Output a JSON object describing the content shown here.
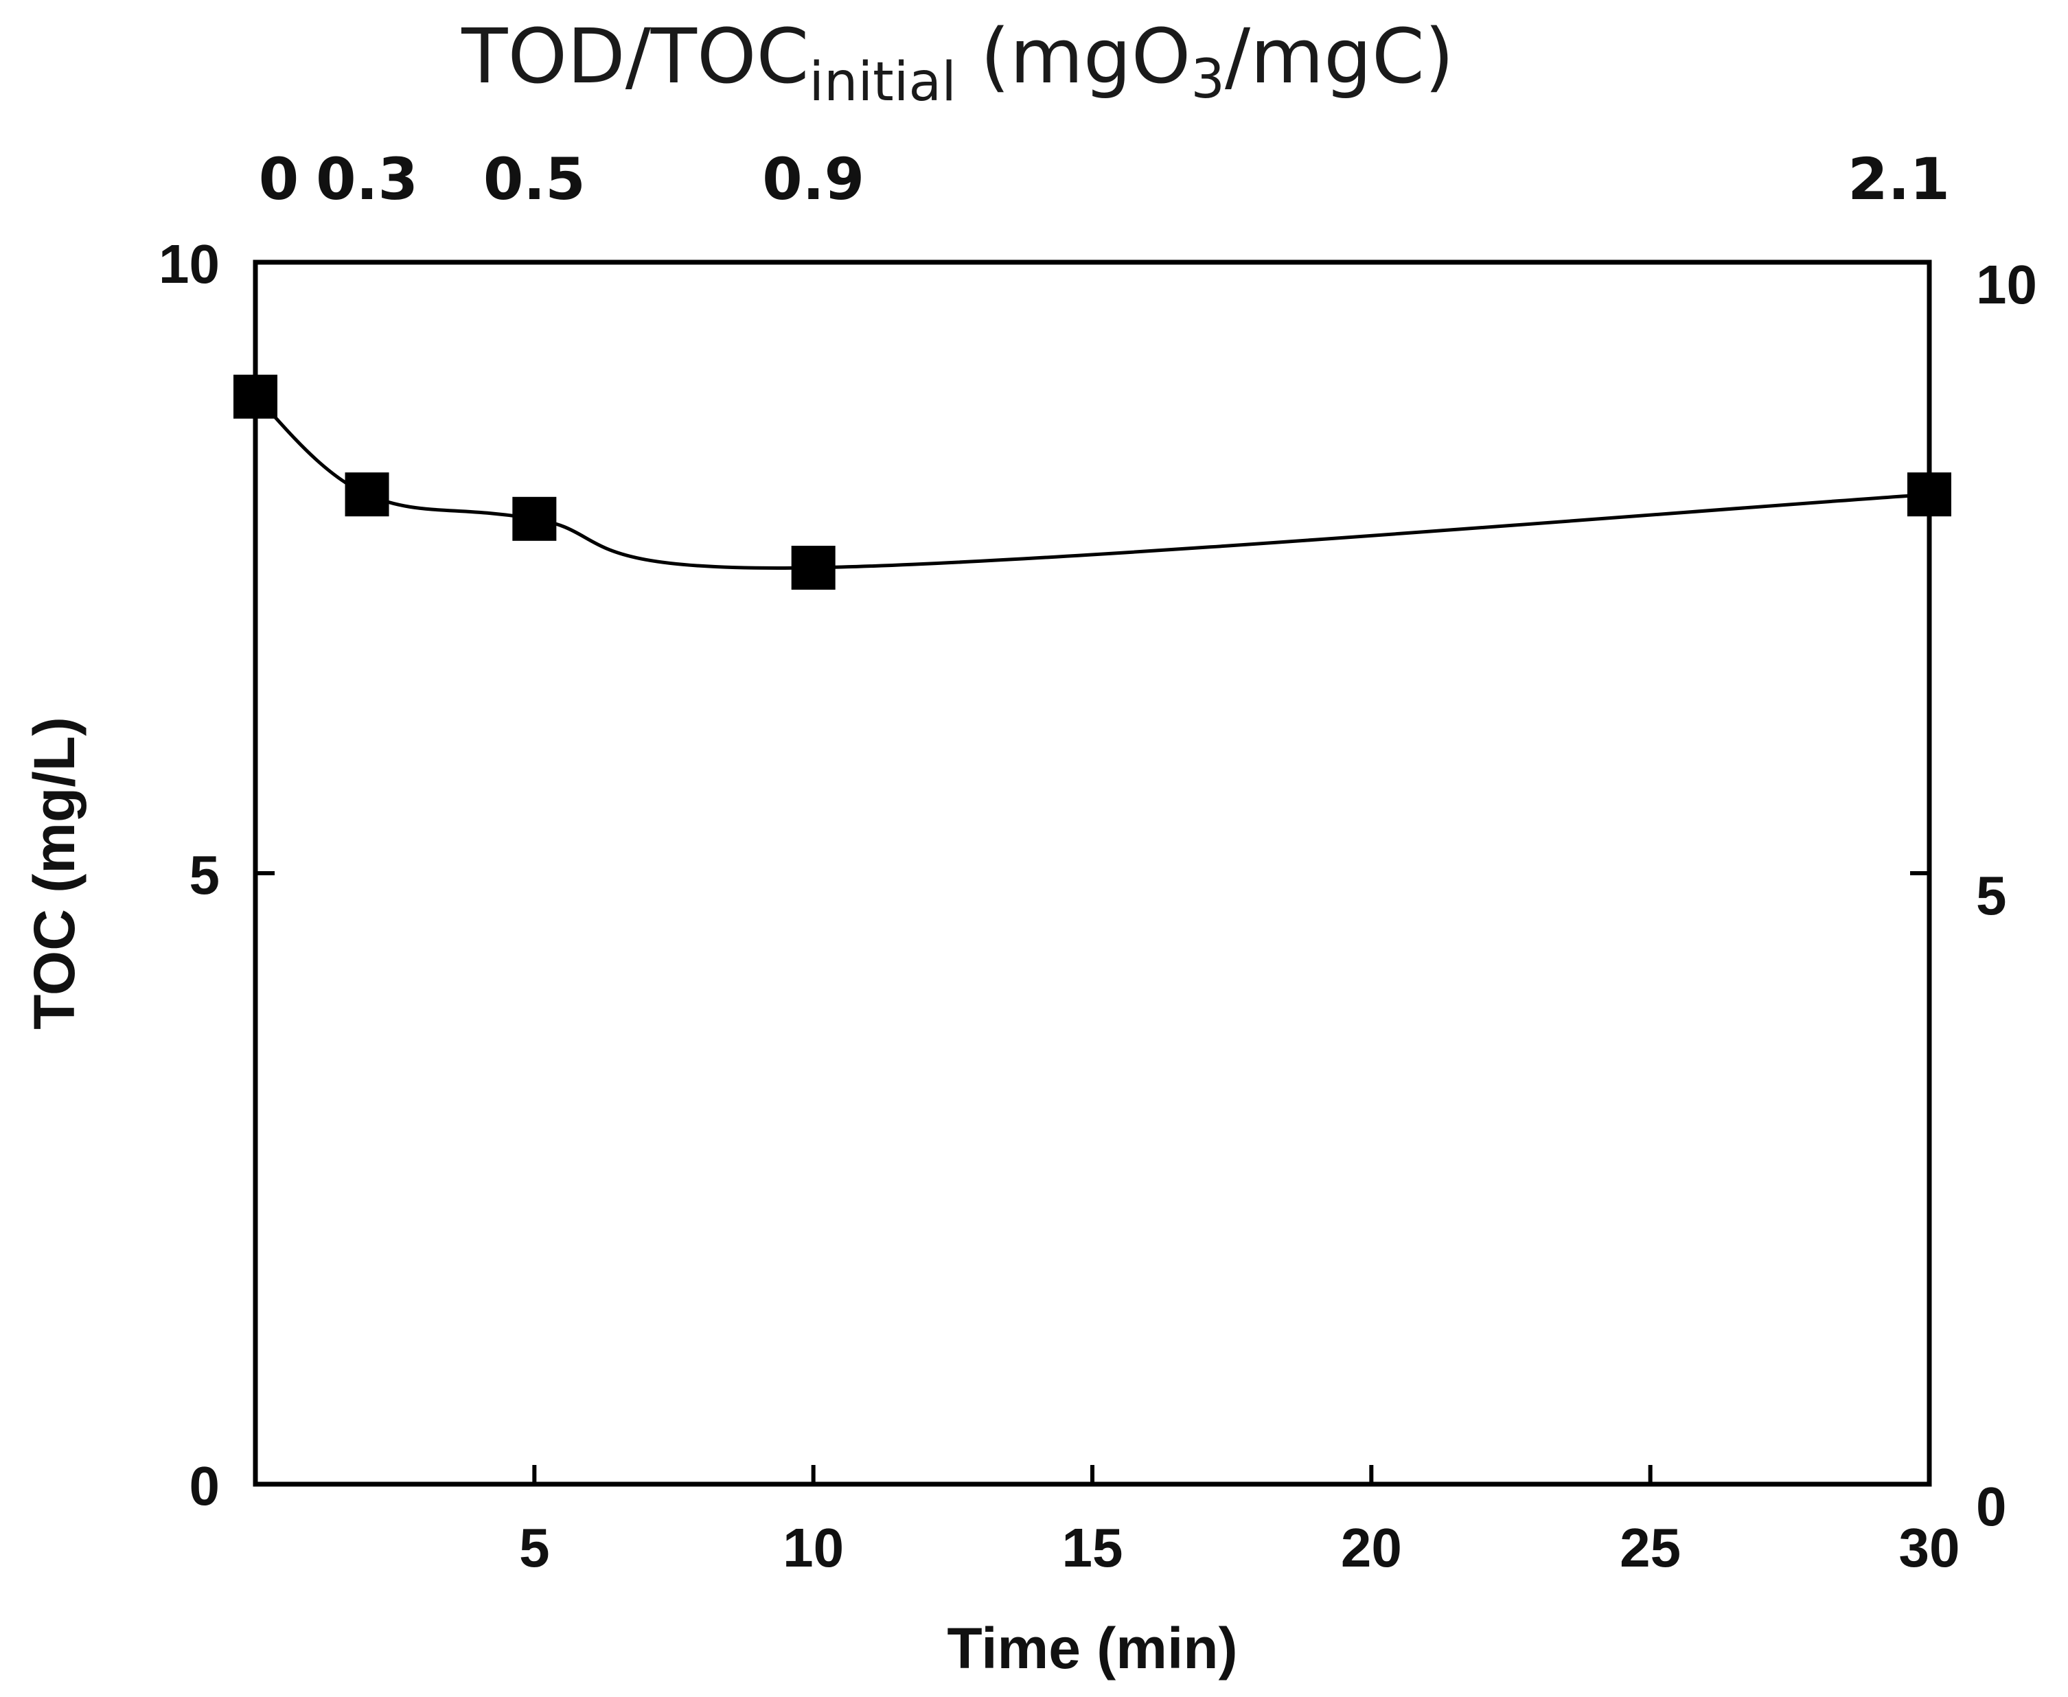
{
  "chart_data": {
    "type": "line",
    "title": "",
    "xlabel": "Time (min)",
    "ylabel": "TOC (mg/L)",
    "xlim": [
      0,
      30
    ],
    "ylim": [
      0,
      10
    ],
    "x_ticks": [
      5,
      10,
      15,
      20,
      25,
      30
    ],
    "x_ticks_minor_unlabeled": [
      0
    ],
    "y_ticks": [
      0,
      5,
      10
    ],
    "y_tick_labels": [
      "0",
      "5",
      "10"
    ],
    "y2_tick_labels": [
      "0",
      "5",
      "10"
    ],
    "grid": false,
    "legend": "none",
    "top_axis": {
      "label_main": "TOD/TOC",
      "label_sub": "initial",
      "label_tail_pre": " (mgO",
      "label_tail_sub": "3",
      "label_tail_post": "/mgC)",
      "ticks": [
        {
          "x": 0,
          "label": "0"
        },
        {
          "x": 2,
          "label": "0.3"
        },
        {
          "x": 5,
          "label": "0.5"
        },
        {
          "x": 10,
          "label": "0.9"
        },
        {
          "x": 30,
          "label": "2.1"
        }
      ]
    },
    "series": [
      {
        "name": "TOC",
        "marker": "square",
        "color": "#000000",
        "x": [
          0,
          2,
          5,
          10,
          30
        ],
        "y": [
          8.9,
          8.1,
          7.9,
          7.5,
          8.1
        ]
      }
    ]
  }
}
